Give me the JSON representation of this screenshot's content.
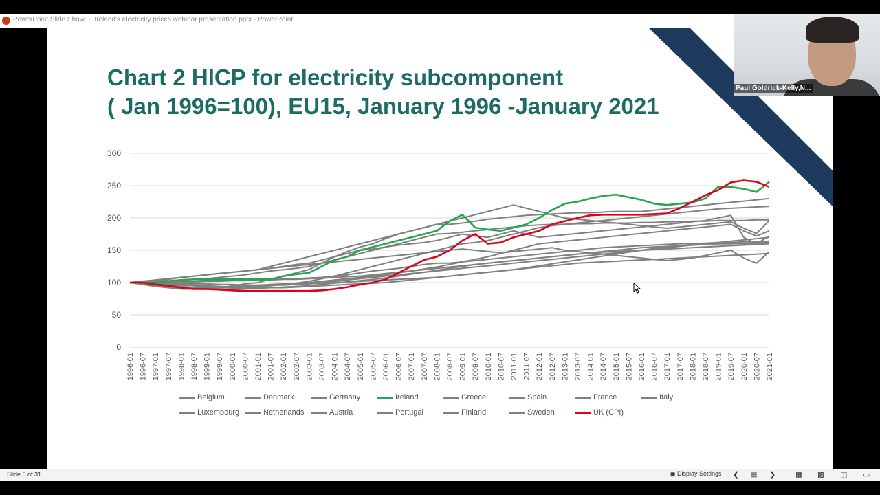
{
  "window": {
    "app_name": "PowerPoint Slide Show",
    "separator": "-",
    "file_title": "Ireland's electricity prices webinar presentation.pptx - PowerPoint"
  },
  "slide": {
    "title_line1": "Chart 2 HICP for electricity subcomponent",
    "title_line2": "( Jan 1996=100), EU15, January 1996 -January 2021",
    "title_color": "#1c6b64",
    "accent_navy": "#1e3a5f"
  },
  "chart_data": {
    "type": "line",
    "ylim": [
      0,
      300
    ],
    "yticks": [
      "0",
      "50",
      "100",
      "150",
      "200",
      "250",
      "300"
    ],
    "xtick_labels": [
      "1996-01",
      "1996-07",
      "1997-01",
      "1997-07",
      "1998-01",
      "1998-07",
      "1999-01",
      "1999-07",
      "2000-01",
      "2000-07",
      "2001-01",
      "2001-07",
      "2002-01",
      "2002-07",
      "2003-01",
      "2003-07",
      "2004-01",
      "2004-07",
      "2005-01",
      "2005-07",
      "2006-01",
      "2006-07",
      "2007-01",
      "2007-07",
      "2008-01",
      "2008-07",
      "2009-01",
      "2009-07",
      "2010-01",
      "2010-07",
      "2011-01",
      "2011-07",
      "2012-01",
      "2012-07",
      "2013-01",
      "2013-07",
      "2014-01",
      "2014-07",
      "2015-01",
      "2015-07",
      "2016-01",
      "2016-07",
      "2017-01",
      "2017-07",
      "2018-01",
      "2018-07",
      "2019-01",
      "2019-07",
      "2020-01",
      "2020-07",
      "2021-01"
    ],
    "grid": true,
    "legend_position": "bottom",
    "colors": {
      "grey": "#808080",
      "ireland": "#23a84e",
      "uk": "#e0001a"
    },
    "series": [
      {
        "name": "Belgium",
        "color": "#808080",
        "values": [
          100,
          102,
          103,
          105,
          108,
          110,
          112,
          114,
          116,
          118,
          120,
          122,
          125,
          128,
          130,
          135,
          140,
          148,
          155,
          160,
          168,
          175,
          180,
          185,
          190,
          190,
          192,
          195,
          198,
          200,
          202,
          204,
          205,
          206,
          207,
          208,
          208,
          209,
          210,
          210,
          210,
          212,
          214,
          216,
          218,
          220,
          222,
          224,
          226,
          228,
          230
        ]
      },
      {
        "name": "Denmark",
        "color": "#808080",
        "values": [
          100,
          101,
          102,
          103,
          104,
          105,
          106,
          108,
          110,
          112,
          115,
          118,
          120,
          122,
          125,
          130,
          135,
          140,
          145,
          150,
          155,
          160,
          165,
          170,
          175,
          176,
          178,
          180,
          182,
          184,
          186,
          188,
          189,
          190,
          190,
          191,
          191,
          192,
          192,
          192,
          193,
          193,
          194,
          194,
          195,
          195,
          196,
          196,
          196,
          197,
          197
        ]
      },
      {
        "name": "Germany",
        "color": "#808080",
        "values": [
          100,
          100,
          99,
          98,
          97,
          96,
          95,
          94,
          93,
          93,
          94,
          95,
          97,
          99,
          102,
          106,
          110,
          115,
          120,
          125,
          130,
          135,
          140,
          145,
          150,
          155,
          160,
          162,
          165,
          170,
          175,
          180,
          185,
          188,
          190,
          192,
          194,
          196,
          198,
          200,
          202,
          204,
          206,
          208,
          210,
          212,
          214,
          215,
          216,
          217,
          218
        ]
      },
      {
        "name": "Ireland",
        "color": "#23a84e",
        "values": [
          100,
          100,
          100,
          102,
          104,
          105,
          105,
          105,
          105,
          105,
          105,
          105,
          110,
          113,
          115,
          125,
          135,
          140,
          150,
          155,
          160,
          165,
          170,
          175,
          180,
          195,
          205,
          185,
          182,
          180,
          185,
          190,
          200,
          212,
          222,
          225,
          230,
          234,
          236,
          232,
          228,
          222,
          220,
          222,
          224,
          230,
          248,
          248,
          245,
          240,
          256
        ]
      },
      {
        "name": "Greece",
        "color": "#808080",
        "values": [
          100,
          100,
          101,
          101,
          102,
          102,
          103,
          103,
          104,
          104,
          105,
          105,
          106,
          106,
          107,
          108,
          110,
          112,
          115,
          118,
          120,
          122,
          125,
          128,
          130,
          130,
          132,
          134,
          136,
          138,
          140,
          142,
          144,
          146,
          148,
          150,
          152,
          154,
          155,
          156,
          157,
          158,
          159,
          160,
          160,
          161,
          162,
          162,
          163,
          163,
          164
        ]
      },
      {
        "name": "Spain",
        "color": "#808080",
        "values": [
          100,
          98,
          96,
          94,
          92,
          92,
          92,
          93,
          94,
          95,
          96,
          97,
          98,
          99,
          100,
          102,
          104,
          106,
          108,
          110,
          112,
          115,
          118,
          121,
          124,
          128,
          132,
          136,
          140,
          145,
          150,
          155,
          160,
          162,
          164,
          166,
          168,
          170,
          172,
          174,
          176,
          178,
          180,
          182,
          184,
          186,
          188,
          190,
          180,
          172,
          180
        ]
      },
      {
        "name": "France",
        "color": "#808080",
        "values": [
          100,
          99,
          98,
          97,
          96,
          95,
          94,
          93,
          92,
          92,
          92,
          92,
          92,
          93,
          94,
          95,
          96,
          97,
          98,
          99,
          100,
          102,
          104,
          106,
          108,
          110,
          112,
          114,
          116,
          118,
          120,
          123,
          126,
          129,
          132,
          135,
          138,
          141,
          144,
          147,
          150,
          153,
          155,
          157,
          158,
          159,
          160,
          160,
          160,
          161,
          162
        ]
      },
      {
        "name": "Italy",
        "color": "#808080",
        "values": [
          100,
          102,
          104,
          106,
          108,
          110,
          112,
          114,
          116,
          118,
          120,
          122,
          124,
          126,
          128,
          130,
          132,
          134,
          136,
          138,
          140,
          142,
          144,
          146,
          148,
          150,
          152,
          150,
          148,
          146,
          148,
          150,
          152,
          154,
          150,
          148,
          146,
          144,
          142,
          140,
          138,
          136,
          134,
          136,
          138,
          142,
          146,
          150,
          138,
          130,
          148
        ]
      },
      {
        "name": "Luxembourg",
        "color": "#808080",
        "values": [
          100,
          98,
          96,
          94,
          93,
          92,
          92,
          92,
          93,
          94,
          95,
          96,
          97,
          98,
          99,
          100,
          102,
          104,
          106,
          108,
          110,
          112,
          114,
          116,
          118,
          120,
          122,
          124,
          126,
          128,
          130,
          132,
          134,
          136,
          138,
          140,
          142,
          144,
          146,
          148,
          150,
          152,
          154,
          156,
          158,
          160,
          162,
          164,
          166,
          168,
          170
        ]
      },
      {
        "name": "Netherlands",
        "color": "#808080",
        "values": [
          100,
          102,
          104,
          106,
          108,
          110,
          112,
          114,
          116,
          118,
          120,
          125,
          130,
          135,
          140,
          145,
          150,
          155,
          160,
          165,
          170,
          175,
          180,
          185,
          190,
          195,
          200,
          205,
          210,
          215,
          220,
          215,
          210,
          205,
          200,
          198,
          196,
          194,
          192,
          190,
          188,
          186,
          184,
          186,
          188,
          190,
          192,
          194,
          184,
          176,
          196
        ]
      },
      {
        "name": "Austria",
        "color": "#808080",
        "values": [
          100,
          100,
          100,
          99,
          99,
          98,
          98,
          97,
          97,
          96,
          96,
          96,
          96,
          97,
          98,
          99,
          100,
          101,
          102,
          103,
          104,
          105,
          106,
          107,
          108,
          110,
          112,
          114,
          116,
          118,
          120,
          122,
          124,
          126,
          128,
          130,
          131,
          132,
          133,
          134,
          135,
          136,
          137,
          138,
          139,
          140,
          141,
          142,
          143,
          144,
          145
        ]
      },
      {
        "name": "Portugal",
        "color": "#808080",
        "values": [
          100,
          100,
          100,
          100,
          101,
          101,
          102,
          102,
          103,
          103,
          104,
          104,
          105,
          105,
          106,
          107,
          108,
          109,
          110,
          112,
          114,
          116,
          118,
          120,
          122,
          124,
          126,
          128,
          130,
          132,
          134,
          136,
          138,
          140,
          142,
          144,
          146,
          148,
          150,
          152,
          154,
          155,
          156,
          157,
          158,
          159,
          160,
          160,
          161,
          161,
          162
        ]
      },
      {
        "name": "Finland",
        "color": "#808080",
        "values": [
          100,
          99,
          98,
          96,
          94,
          92,
          91,
          90,
          90,
          90,
          91,
          92,
          93,
          94,
          95,
          97,
          99,
          101,
          103,
          105,
          107,
          110,
          113,
          116,
          119,
          122,
          125,
          128,
          130,
          132,
          134,
          136,
          138,
          140,
          142,
          144,
          146,
          147,
          148,
          149,
          150,
          151,
          152,
          153,
          154,
          155,
          156,
          157,
          158,
          159,
          160
        ]
      },
      {
        "name": "Sweden",
        "color": "#808080",
        "values": [
          100,
          97,
          94,
          92,
          90,
          90,
          90,
          92,
          95,
          98,
          100,
          105,
          110,
          115,
          120,
          130,
          140,
          145,
          150,
          152,
          155,
          158,
          160,
          162,
          165,
          170,
          175,
          172,
          170,
          175,
          180,
          175,
          170,
          172,
          174,
          176,
          178,
          180,
          182,
          184,
          186,
          188,
          190,
          192,
          194,
          196,
          200,
          204,
          170,
          160,
          172
        ]
      },
      {
        "name": "UK (CPI)",
        "color": "#e0001a",
        "values": [
          100,
          100,
          97,
          95,
          92,
          90,
          90,
          89,
          88,
          87,
          87,
          87,
          87,
          87,
          87,
          88,
          90,
          93,
          97,
          100,
          105,
          115,
          125,
          135,
          140,
          150,
          165,
          175,
          160,
          162,
          170,
          175,
          180,
          190,
          195,
          200,
          204,
          205,
          205,
          205,
          205,
          206,
          207,
          215,
          225,
          235,
          243,
          255,
          258,
          256,
          248
        ]
      }
    ]
  },
  "presenter": {
    "name": "Paul Goldrick-Kelly,N..."
  },
  "statusbar": {
    "slide_counter": "Slide 6 of 31",
    "display_settings": "Display Settings"
  }
}
